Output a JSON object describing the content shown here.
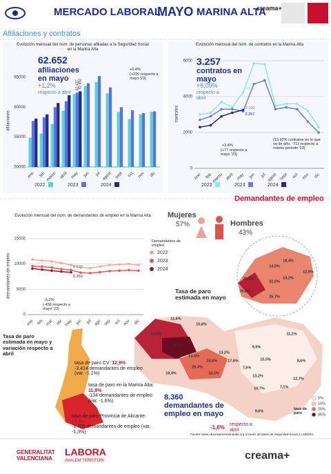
{
  "header": {
    "title": "MERCADO LABORAL",
    "month": "MAYO",
    "region": "MARINA ALTA",
    "brand": "creama+"
  },
  "sections": {
    "affiliations": "Afiliaciones y contratos",
    "jobseekers": "Demandantes de empleo"
  },
  "chart_data": [
    {
      "type": "bar",
      "title": "Evolución mensual del núm. de personas afiliadas a la Seguridad Social en la Marina Alta",
      "y_label": "afiliaciones",
      "categories": [
        "ene",
        "feb",
        "marzo",
        "abril",
        "may",
        "jun",
        "jul",
        "agost",
        "sept",
        "oct",
        "nov",
        "dic"
      ],
      "series": [
        {
          "name": "2022",
          "color": "#56d3d3",
          "values": [
            54900,
            55600,
            57200,
            59400,
            62200,
            63500,
            64200,
            62300,
            59200,
            58000,
            58800,
            59200
          ]
        },
        {
          "name": "2023",
          "color": "#5b6fe0",
          "values": [
            57700,
            58300,
            60000,
            61000,
            62427,
            64000,
            65200,
            63300,
            60000,
            59500,
            59000,
            59300
          ],
          "value_labels": [
            null,
            null,
            null,
            null,
            "62.427",
            null,
            null,
            null,
            null,
            null,
            null,
            null
          ]
        },
        {
          "name": "2024",
          "color": "#1d2b8c",
          "values": [
            58100,
            58800,
            60700,
            62000,
            62652,
            null,
            null,
            null,
            null,
            null,
            null,
            null
          ],
          "value_labels": [
            null,
            null,
            null,
            null,
            "62.652",
            null,
            null,
            null,
            null,
            null,
            null,
            null
          ]
        }
      ],
      "ylim": [
        50000,
        65000
      ],
      "yticks": [
        50000,
        55000,
        60000,
        65000
      ],
      "grid": false,
      "legend_position": "bottom",
      "annotations": {
        "main_value": "62.652",
        "main_label": "afiliaciones en mayo",
        "monthly_change": "+1,2%",
        "monthly_label": "respecto a abril",
        "yearly_change": "+0,4%",
        "yearly_label": "(+225 respecto a mayo '23)"
      }
    },
    {
      "type": "line",
      "title": "Evolución mensual del núm. de contratos en la Marina Alta",
      "y_label": "contratos",
      "categories": [
        "ene",
        "feb",
        "marzo",
        "abril",
        "may",
        "jun",
        "jul",
        "agost",
        "sept",
        "oct",
        "nov",
        "dic"
      ],
      "series": [
        {
          "name": "2022",
          "color": "#8ee6e6",
          "values": [
            3000,
            3100,
            3700,
            3400,
            4242,
            5850,
            5800,
            3500,
            3600,
            3600,
            3200,
            2300
          ],
          "value_labels": [
            null,
            null,
            null,
            null,
            "4.242",
            null,
            null,
            null,
            null,
            null,
            null,
            null
          ]
        },
        {
          "name": "2023",
          "color": "#6a7de6",
          "values": [
            2700,
            2900,
            3300,
            3300,
            3180,
            4700,
            4900,
            3300,
            3400,
            3300,
            2600,
            2000
          ],
          "value_labels": [
            null,
            null,
            null,
            null,
            "3.180",
            null,
            null,
            null,
            null,
            null,
            null,
            null
          ]
        },
        {
          "name": "2024",
          "color": "#1d2b8c",
          "values": [
            2300,
            2400,
            2900,
            3100,
            3257,
            null,
            null,
            null,
            null,
            null,
            null,
            null
          ],
          "value_labels": [
            null,
            null,
            null,
            null,
            "3.257",
            null,
            null,
            null,
            null,
            null,
            null,
            null
          ]
        }
      ],
      "ylim": [
        0,
        6000
      ],
      "yticks": [
        0,
        2000,
        4000,
        6000
      ],
      "grid": true,
      "markers": true,
      "legend_position": "bottom",
      "annotations": {
        "main_value": "3.257",
        "main_label": "contratos en mayo",
        "monthly_change": "+6,09%",
        "monthly_label": "respecto a abril",
        "yearly_change": "+2,4%",
        "yearly_label": "(+77 respecto a mayo '23)",
        "ytd_label": "(13,92% contratos en lo que va de año, -711 respecto a mismo periodo '23)"
      }
    },
    {
      "type": "line",
      "title": "Evolución mensual del núm. de demandantes de empleo en la Marina Alta",
      "y_label": "demandantes de empleo",
      "legend_title": "Demandantes de empleo",
      "categories": [
        "ene",
        "feb",
        "mar",
        "abr",
        "may",
        "jun",
        "jul",
        "ago",
        "sep",
        "oct",
        "nov",
        "dic"
      ],
      "series": [
        {
          "name": "2022",
          "color": "#f0a8a0",
          "values": [
            10900,
            10700,
            10500,
            10200,
            9785,
            9300,
            9200,
            9500,
            9800,
            9900,
            10000,
            9800
          ]
        },
        {
          "name": "2023",
          "color": "#d95a5a",
          "values": [
            9600,
            9500,
            9300,
            9000,
            8818,
            8300,
            8200,
            8400,
            8600,
            8700,
            8800,
            8700
          ],
          "value_labels": [
            null,
            null,
            null,
            null,
            "8.818",
            null,
            null,
            null,
            null,
            null,
            null,
            null
          ]
        },
        {
          "name": "2024",
          "color": "#a0142a",
          "values": [
            9100,
            8900,
            8700,
            8500,
            8360,
            null,
            null,
            null,
            null,
            null,
            null,
            null
          ],
          "value_labels": [
            null,
            null,
            null,
            null,
            "8.360",
            null,
            null,
            null,
            null,
            null,
            null,
            null
          ]
        }
      ],
      "ylim": [
        0,
        15000
      ],
      "yticks": [
        0,
        5000,
        10000,
        15000
      ],
      "grid": true,
      "markers": true,
      "legend_position": "right",
      "annotations": {
        "yearly_change": "-5,2%",
        "yearly_label": "(-458 respecto a mayo '23)"
      }
    }
  ],
  "gender": {
    "women_label": "Mujeres",
    "women": "57%",
    "men_label": "Hombres",
    "men": "43%"
  },
  "map": {
    "title": "Tasa de paro estimada en mayo",
    "labels": [
      "18,4%",
      "14,5%",
      "12,6%",
      "13,2%",
      "26,9%",
      "22,5%",
      "28,8%",
      "25,7%",
      "11,6%",
      "15,8%",
      "24,3%",
      "11,2%",
      "38,5%",
      "13,4%",
      "9,9%",
      "13,2%",
      "24,6%",
      "17,6%",
      "15,5%",
      "8,6%",
      "29,4%",
      "7,6%",
      "16,2%",
      "19,4%",
      "13,2%",
      "12,7%",
      "10,7%",
      "7,1%",
      "9,6%"
    ],
    "legend_title": "tasa de paro",
    "legend": [
      "5%",
      "10%",
      "20%",
      "35%"
    ],
    "legend_colors": [
      "#f7e9e6",
      "#f2c3b8",
      "#e46a55",
      "#6b0d1e"
    ]
  },
  "region_rates": {
    "title": "Tasa de paro estimada en mayo y variación respecto a abril",
    "items": [
      {
        "label": "tasa de paro CV:",
        "rate": "12,9%",
        "detail": "-3.414 demandantes de empleo (var. -1,1%)"
      },
      {
        "label": "tasa de paro en la Marina Alta:",
        "rate": "11,8%",
        "detail": "-134 demandantes de empleo (var. -1,6%)"
      },
      {
        "label": "tasa de paro Provincia de Alicante:",
        "rate": "14,6%",
        "detail": "-1.700 demandantes de empleo (var. -1,3%)"
      }
    ]
  },
  "jobseekers": {
    "main": "8.360 demandantes de empleo en mayo",
    "change": "-1,6%",
    "change_label": "respecto a abril"
  },
  "source": "Fuente: www.observatorimarinaalta.org a través de datos de Seguridad Social y LABORA",
  "footer": {
    "gva_1": "GENERALITAT",
    "gva_2": "VALENCIANA",
    "labora": "LABORA",
    "labora_sub": "AVALEM TERRITORI",
    "brand": "creama+"
  }
}
